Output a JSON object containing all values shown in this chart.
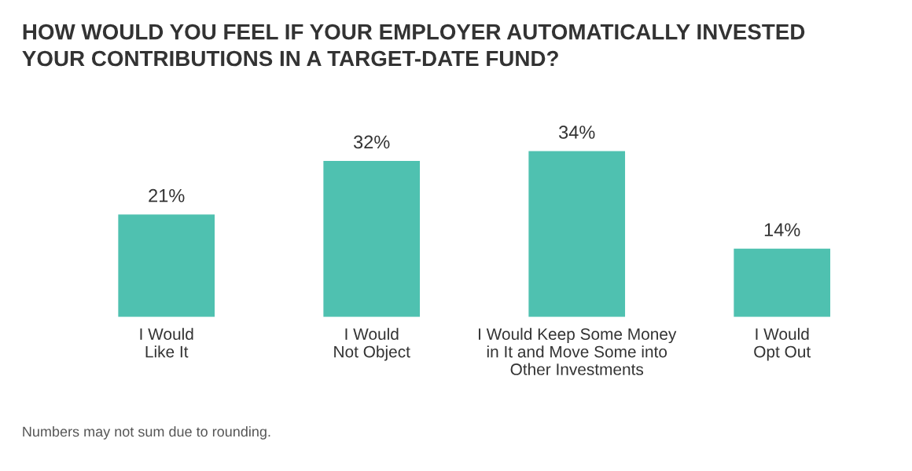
{
  "chart_data": {
    "type": "bar",
    "title": "HOW WOULD YOU FEEL IF YOUR EMPLOYER AUTOMATICALLY INVESTED\nYOUR CONTRIBUTIONS IN A TARGET-DATE FUND?",
    "categories": [
      "I Would\nLike It",
      "I Would\nNot Object",
      "I Would Keep Some Money\nin It and Move Some into\nOther Investments",
      "I Would\nOpt Out"
    ],
    "values": [
      21,
      32,
      34,
      14
    ],
    "color": "#4fc1b0",
    "data_labels": true,
    "value_labels": [
      "21%",
      "32%",
      "34%",
      "14%"
    ],
    "annotations": [
      "Numbers may not sum due to rounding."
    ]
  }
}
